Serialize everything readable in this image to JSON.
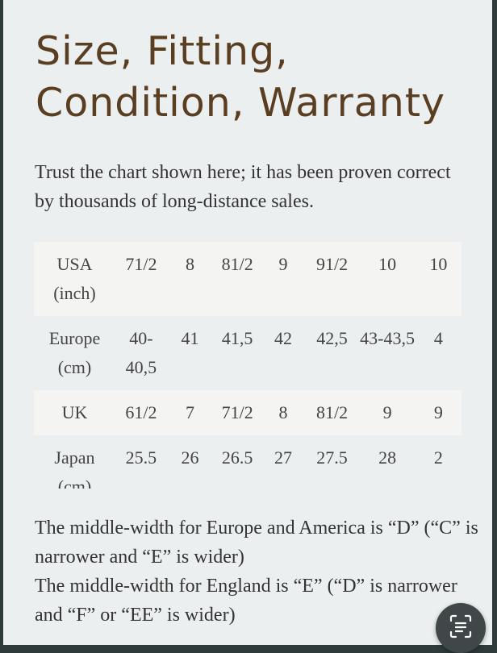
{
  "heading": {
    "line1": "Size, Fitting,",
    "line2": "Condition, Warranty"
  },
  "intro": "Trust the chart shown here; it has been proven correct by thousands of long-distance sales.",
  "size_table": {
    "rows": [
      {
        "label": [
          "USA",
          "(inch)"
        ],
        "cells": [
          "71/2",
          "8",
          "81/2",
          "9",
          "91/2",
          "10",
          "10"
        ]
      },
      {
        "label": [
          "Europe",
          "(cm)"
        ],
        "cells": [
          "40-40,5",
          "41",
          "41,5",
          "42",
          "42,5",
          "43-43,5",
          "4"
        ]
      },
      {
        "label": [
          "UK",
          ""
        ],
        "cells": [
          "61/2",
          "7",
          "71/2",
          "8",
          "81/2",
          "9",
          "9"
        ]
      },
      {
        "label": [
          "Japan",
          "(cm)"
        ],
        "cells": [
          "25.5",
          "26",
          "26.5",
          "27",
          "27.5",
          "28",
          "2"
        ]
      }
    ]
  },
  "notes": {
    "line1": "The middle-width for Europe and America is “D” (“C” is narrower and “E” is wider)",
    "line2": "The middle-width for England is “E” (“D” is narrower and “F” or “EE” is wider)"
  },
  "icons": {
    "floating_button": "scan-text-icon"
  },
  "colors": {
    "heading": "#5a3e22",
    "page_background": "#ebefef",
    "row_stripe": "#f4f4f3"
  }
}
